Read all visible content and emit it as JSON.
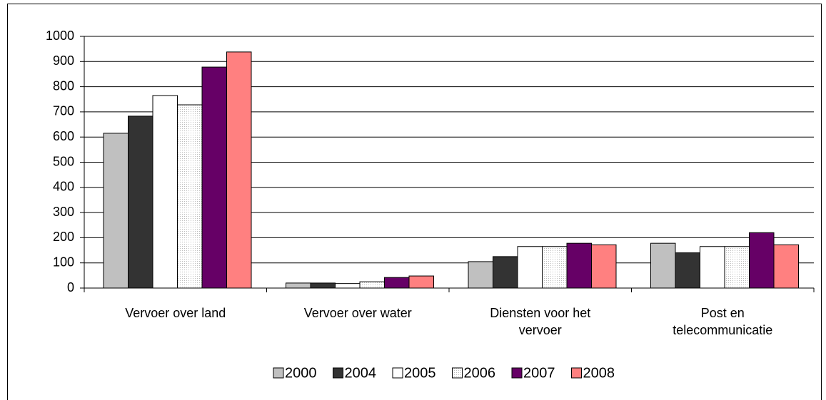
{
  "chart_data": {
    "type": "bar",
    "categories": [
      "Vervoer over land",
      "Vervoer over water",
      "Diensten voor het vervoer",
      "Post en telecommunicatie"
    ],
    "series": [
      {
        "name": "2000",
        "color": "#c0c0c0",
        "values": [
          615,
          20,
          105,
          178
        ]
      },
      {
        "name": "2004",
        "color": "#333333",
        "values": [
          683,
          20,
          125,
          140
        ]
      },
      {
        "name": "2005",
        "color": "#ffffff",
        "values": [
          765,
          18,
          165,
          165
        ]
      },
      {
        "name": "2006",
        "color": "#f2f2f2",
        "values": [
          728,
          25,
          165,
          165
        ]
      },
      {
        "name": "2007",
        "color": "#660066",
        "values": [
          878,
          42,
          178,
          220
        ]
      },
      {
        "name": "2008",
        "color": "#ff8080",
        "values": [
          938,
          48,
          172,
          172
        ]
      }
    ],
    "ylim": [
      0,
      1000
    ],
    "yticks": [
      0,
      100,
      200,
      300,
      400,
      500,
      600,
      700,
      800,
      900,
      1000
    ],
    "grid": true,
    "legend": "bottom"
  }
}
